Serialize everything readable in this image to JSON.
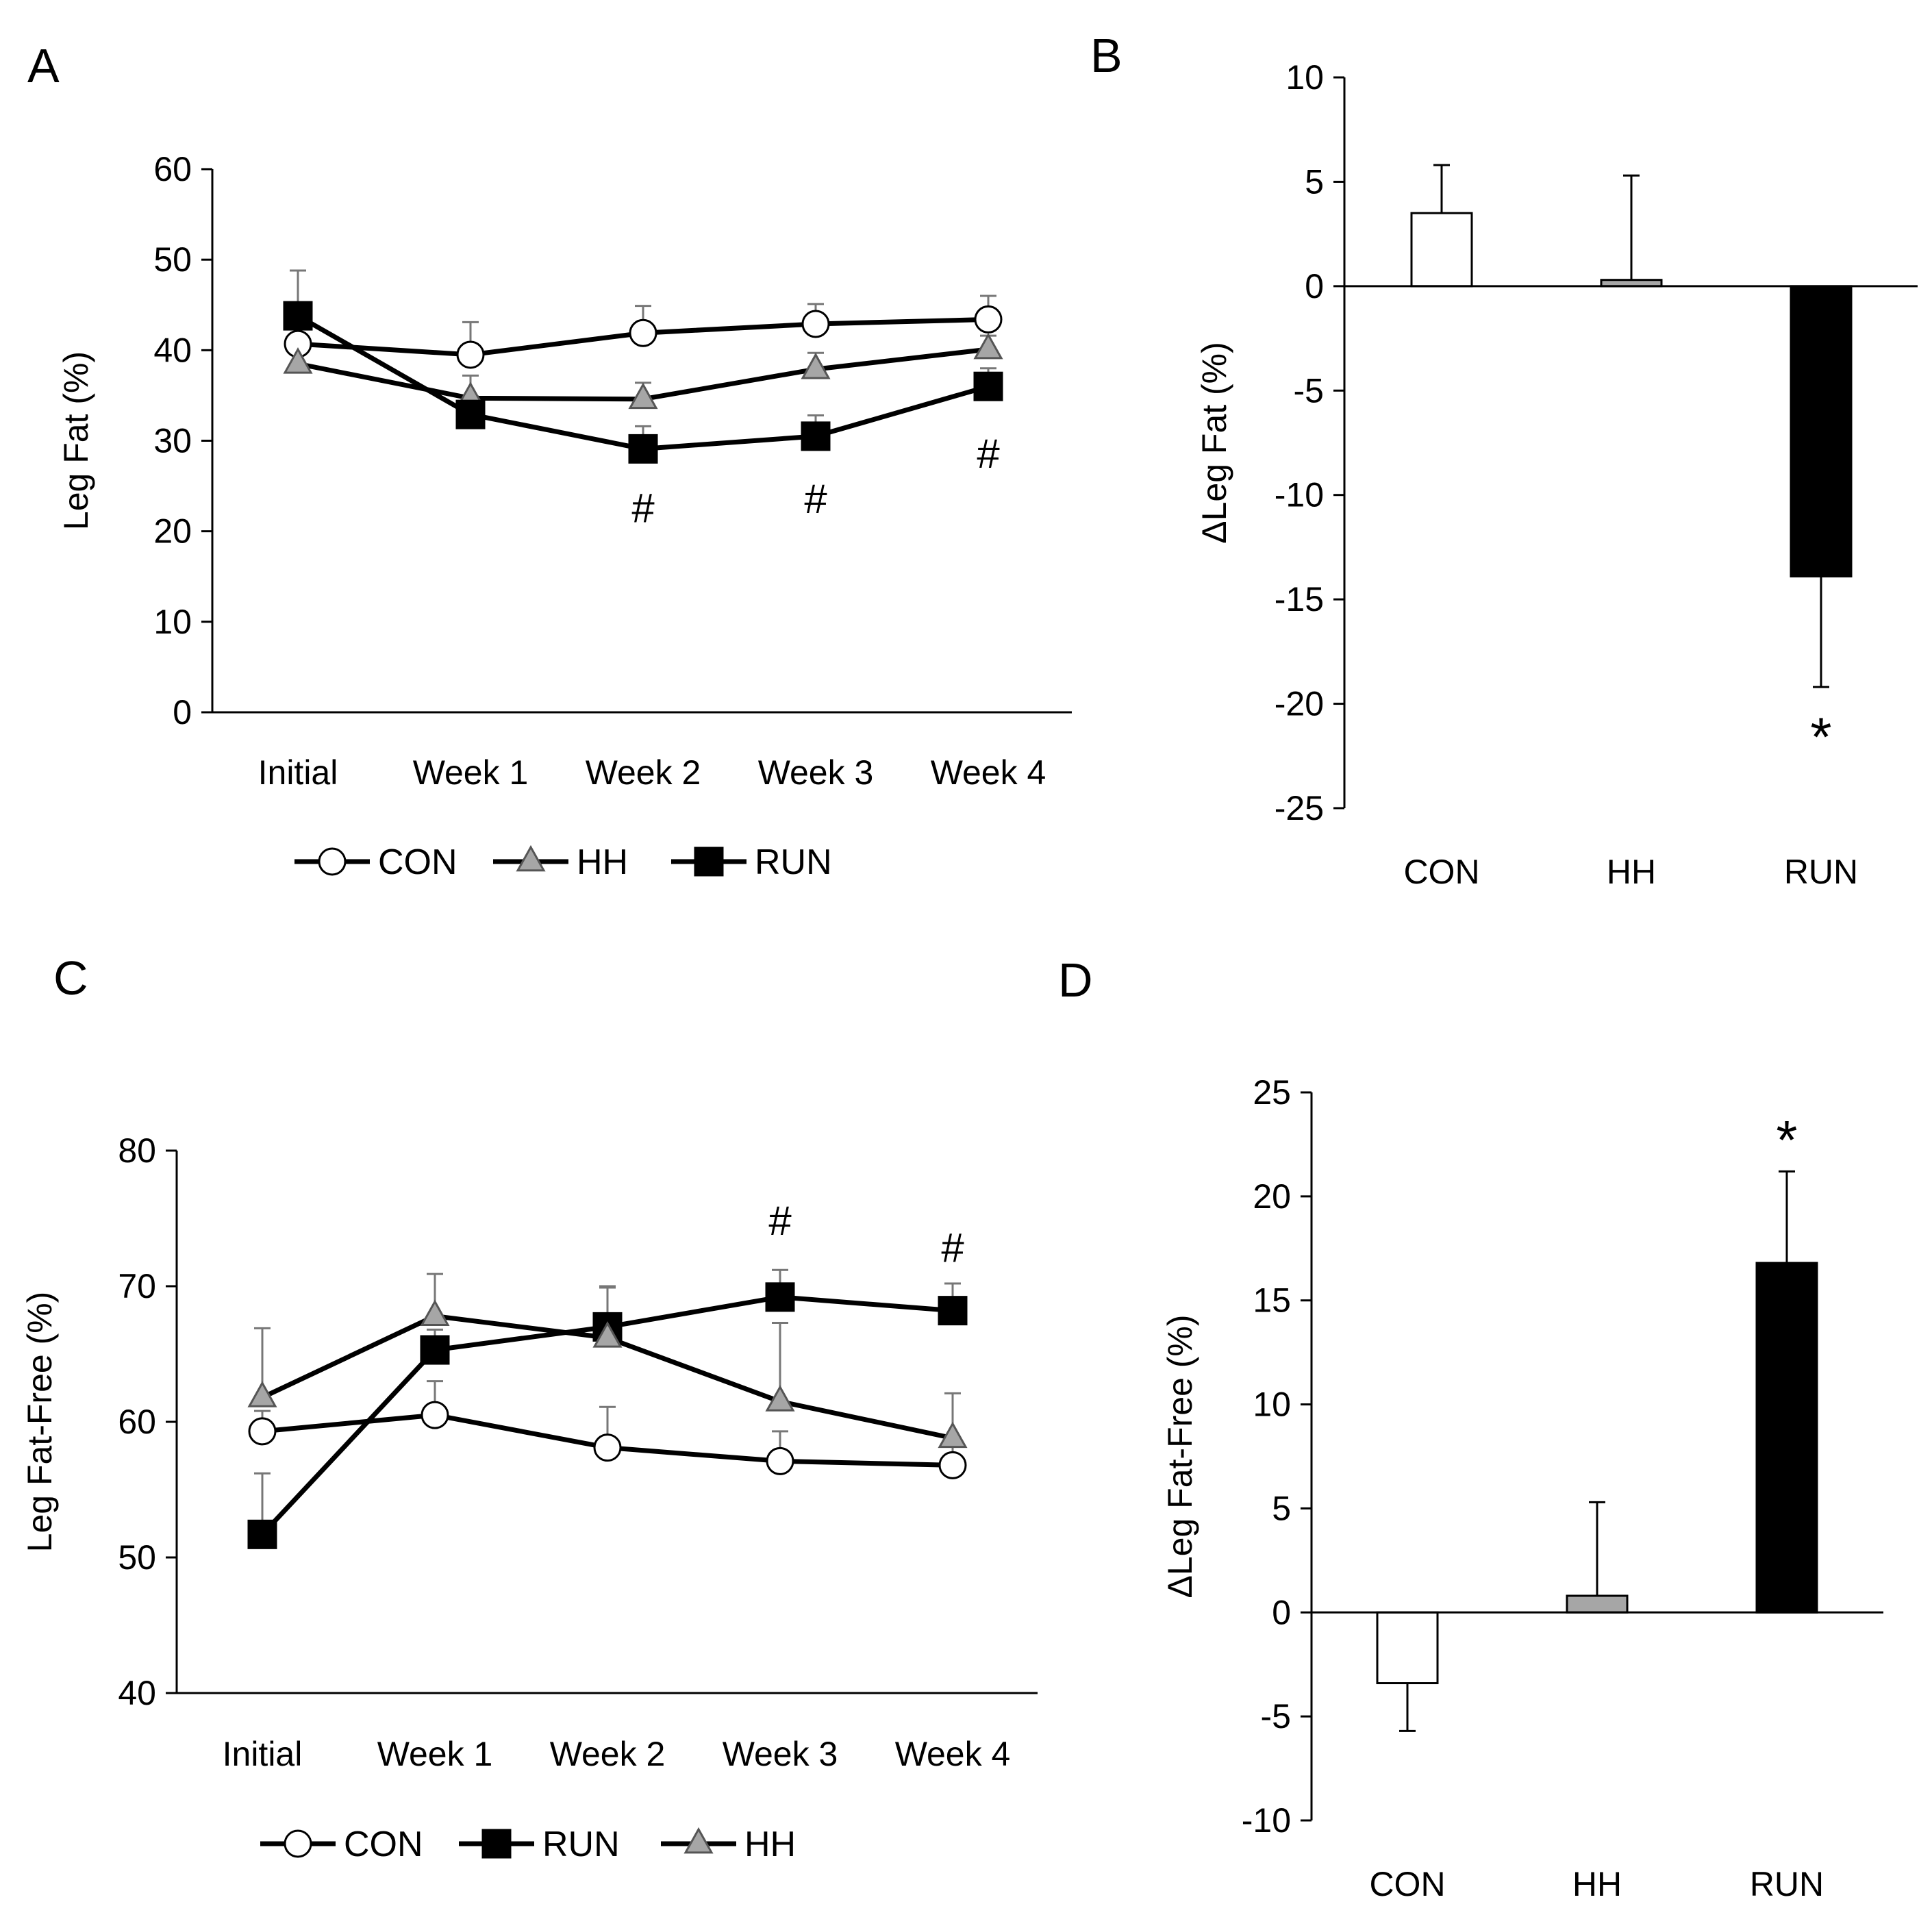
{
  "chart_data": [
    {
      "panel": "A",
      "type": "line",
      "ylabel": "Leg Fat (%)",
      "xlabel": "",
      "categories": [
        "Initial",
        "Week 1",
        "Week 2",
        "Week 3",
        "Week 4"
      ],
      "ylim": [
        0,
        60
      ],
      "yticks": [
        0,
        10,
        20,
        30,
        40,
        50,
        60
      ],
      "series": [
        {
          "name": "CON",
          "marker": "circle",
          "fill": "#ffffff",
          "values": [
            40.7,
            39.5,
            41.9,
            42.9,
            43.4
          ],
          "errors": [
            2.0,
            3.6,
            3.0,
            2.2,
            2.6
          ]
        },
        {
          "name": "HH",
          "marker": "triangle",
          "fill": "#a6a6a6",
          "values": [
            38.5,
            34.7,
            34.6,
            37.9,
            40.1
          ],
          "errors": [
            3.0,
            2.5,
            1.8,
            1.8,
            1.5
          ]
        },
        {
          "name": "RUN",
          "marker": "square",
          "fill": "#000000",
          "values": [
            43.8,
            32.9,
            29.1,
            30.5,
            36.0
          ],
          "errors": [
            5.0,
            2.0,
            2.5,
            2.3,
            2.0
          ]
        }
      ],
      "annotations": [
        {
          "text": "#",
          "category": "Week 2",
          "y": 21
        },
        {
          "text": "#",
          "category": "Week 3",
          "y": 22
        },
        {
          "text": "#",
          "category": "Week 4",
          "y": 27
        }
      ],
      "legend": [
        "CON",
        "HH",
        "RUN"
      ],
      "legend_position": "bottom"
    },
    {
      "panel": "B",
      "type": "bar",
      "ylabel": "ΔLeg Fat (%)",
      "xlabel": "",
      "categories": [
        "CON",
        "HH",
        "RUN"
      ],
      "ylim": [
        -25,
        10
      ],
      "yticks": [
        -25,
        -20,
        -15,
        -10,
        -5,
        0,
        5,
        10
      ],
      "values": [
        3.5,
        0.3,
        -13.9
      ],
      "errors": [
        2.3,
        5.0,
        5.3
      ],
      "colors": [
        "#ffffff",
        "#a6a6a6",
        "#000000"
      ],
      "annotations": [
        {
          "text": "*",
          "category": "RUN",
          "y": -21.5
        }
      ]
    },
    {
      "panel": "C",
      "type": "line",
      "ylabel": "Leg Fat-Free (%)",
      "xlabel": "",
      "categories": [
        "Initial",
        "Week 1",
        "Week 2",
        "Week 3",
        "Week 4"
      ],
      "ylim": [
        40,
        80
      ],
      "yticks": [
        40,
        50,
        60,
        70,
        80
      ],
      "series": [
        {
          "name": "CON",
          "marker": "circle",
          "fill": "#ffffff",
          "values": [
            59.3,
            60.5,
            58.1,
            57.1,
            56.8
          ],
          "errors": [
            1.5,
            2.5,
            3.0,
            2.2,
            2.0
          ]
        },
        {
          "name": "RUN",
          "marker": "square",
          "fill": "#000000",
          "values": [
            51.7,
            65.3,
            67.0,
            69.2,
            68.2
          ],
          "errors": [
            4.5,
            1.5,
            3.0,
            2.0,
            2.0
          ]
        },
        {
          "name": "HH",
          "marker": "triangle",
          "fill": "#a6a6a6",
          "values": [
            61.8,
            67.8,
            66.2,
            61.5,
            58.8
          ],
          "errors": [
            5.1,
            3.1,
            3.7,
            5.8,
            3.3
          ]
        }
      ],
      "annotations": [
        {
          "text": "#",
          "category": "Week 3",
          "y": 73.8
        },
        {
          "text": "#",
          "category": "Week 4",
          "y": 71.8
        }
      ],
      "legend": [
        "CON",
        "RUN",
        "HH"
      ],
      "legend_position": "bottom"
    },
    {
      "panel": "D",
      "type": "bar",
      "ylabel": "ΔLeg Fat-Free (%)",
      "xlabel": "",
      "categories": [
        "CON",
        "HH",
        "RUN"
      ],
      "ylim": [
        -10,
        25
      ],
      "yticks": [
        -10,
        -5,
        0,
        5,
        10,
        15,
        20,
        25
      ],
      "values": [
        -3.4,
        0.8,
        16.8
      ],
      "errors": [
        2.3,
        4.5,
        4.4
      ],
      "colors": [
        "#ffffff",
        "#a6a6a6",
        "#000000"
      ],
      "annotations": [
        {
          "text": "*",
          "category": "RUN",
          "y": 22.8
        }
      ]
    }
  ]
}
